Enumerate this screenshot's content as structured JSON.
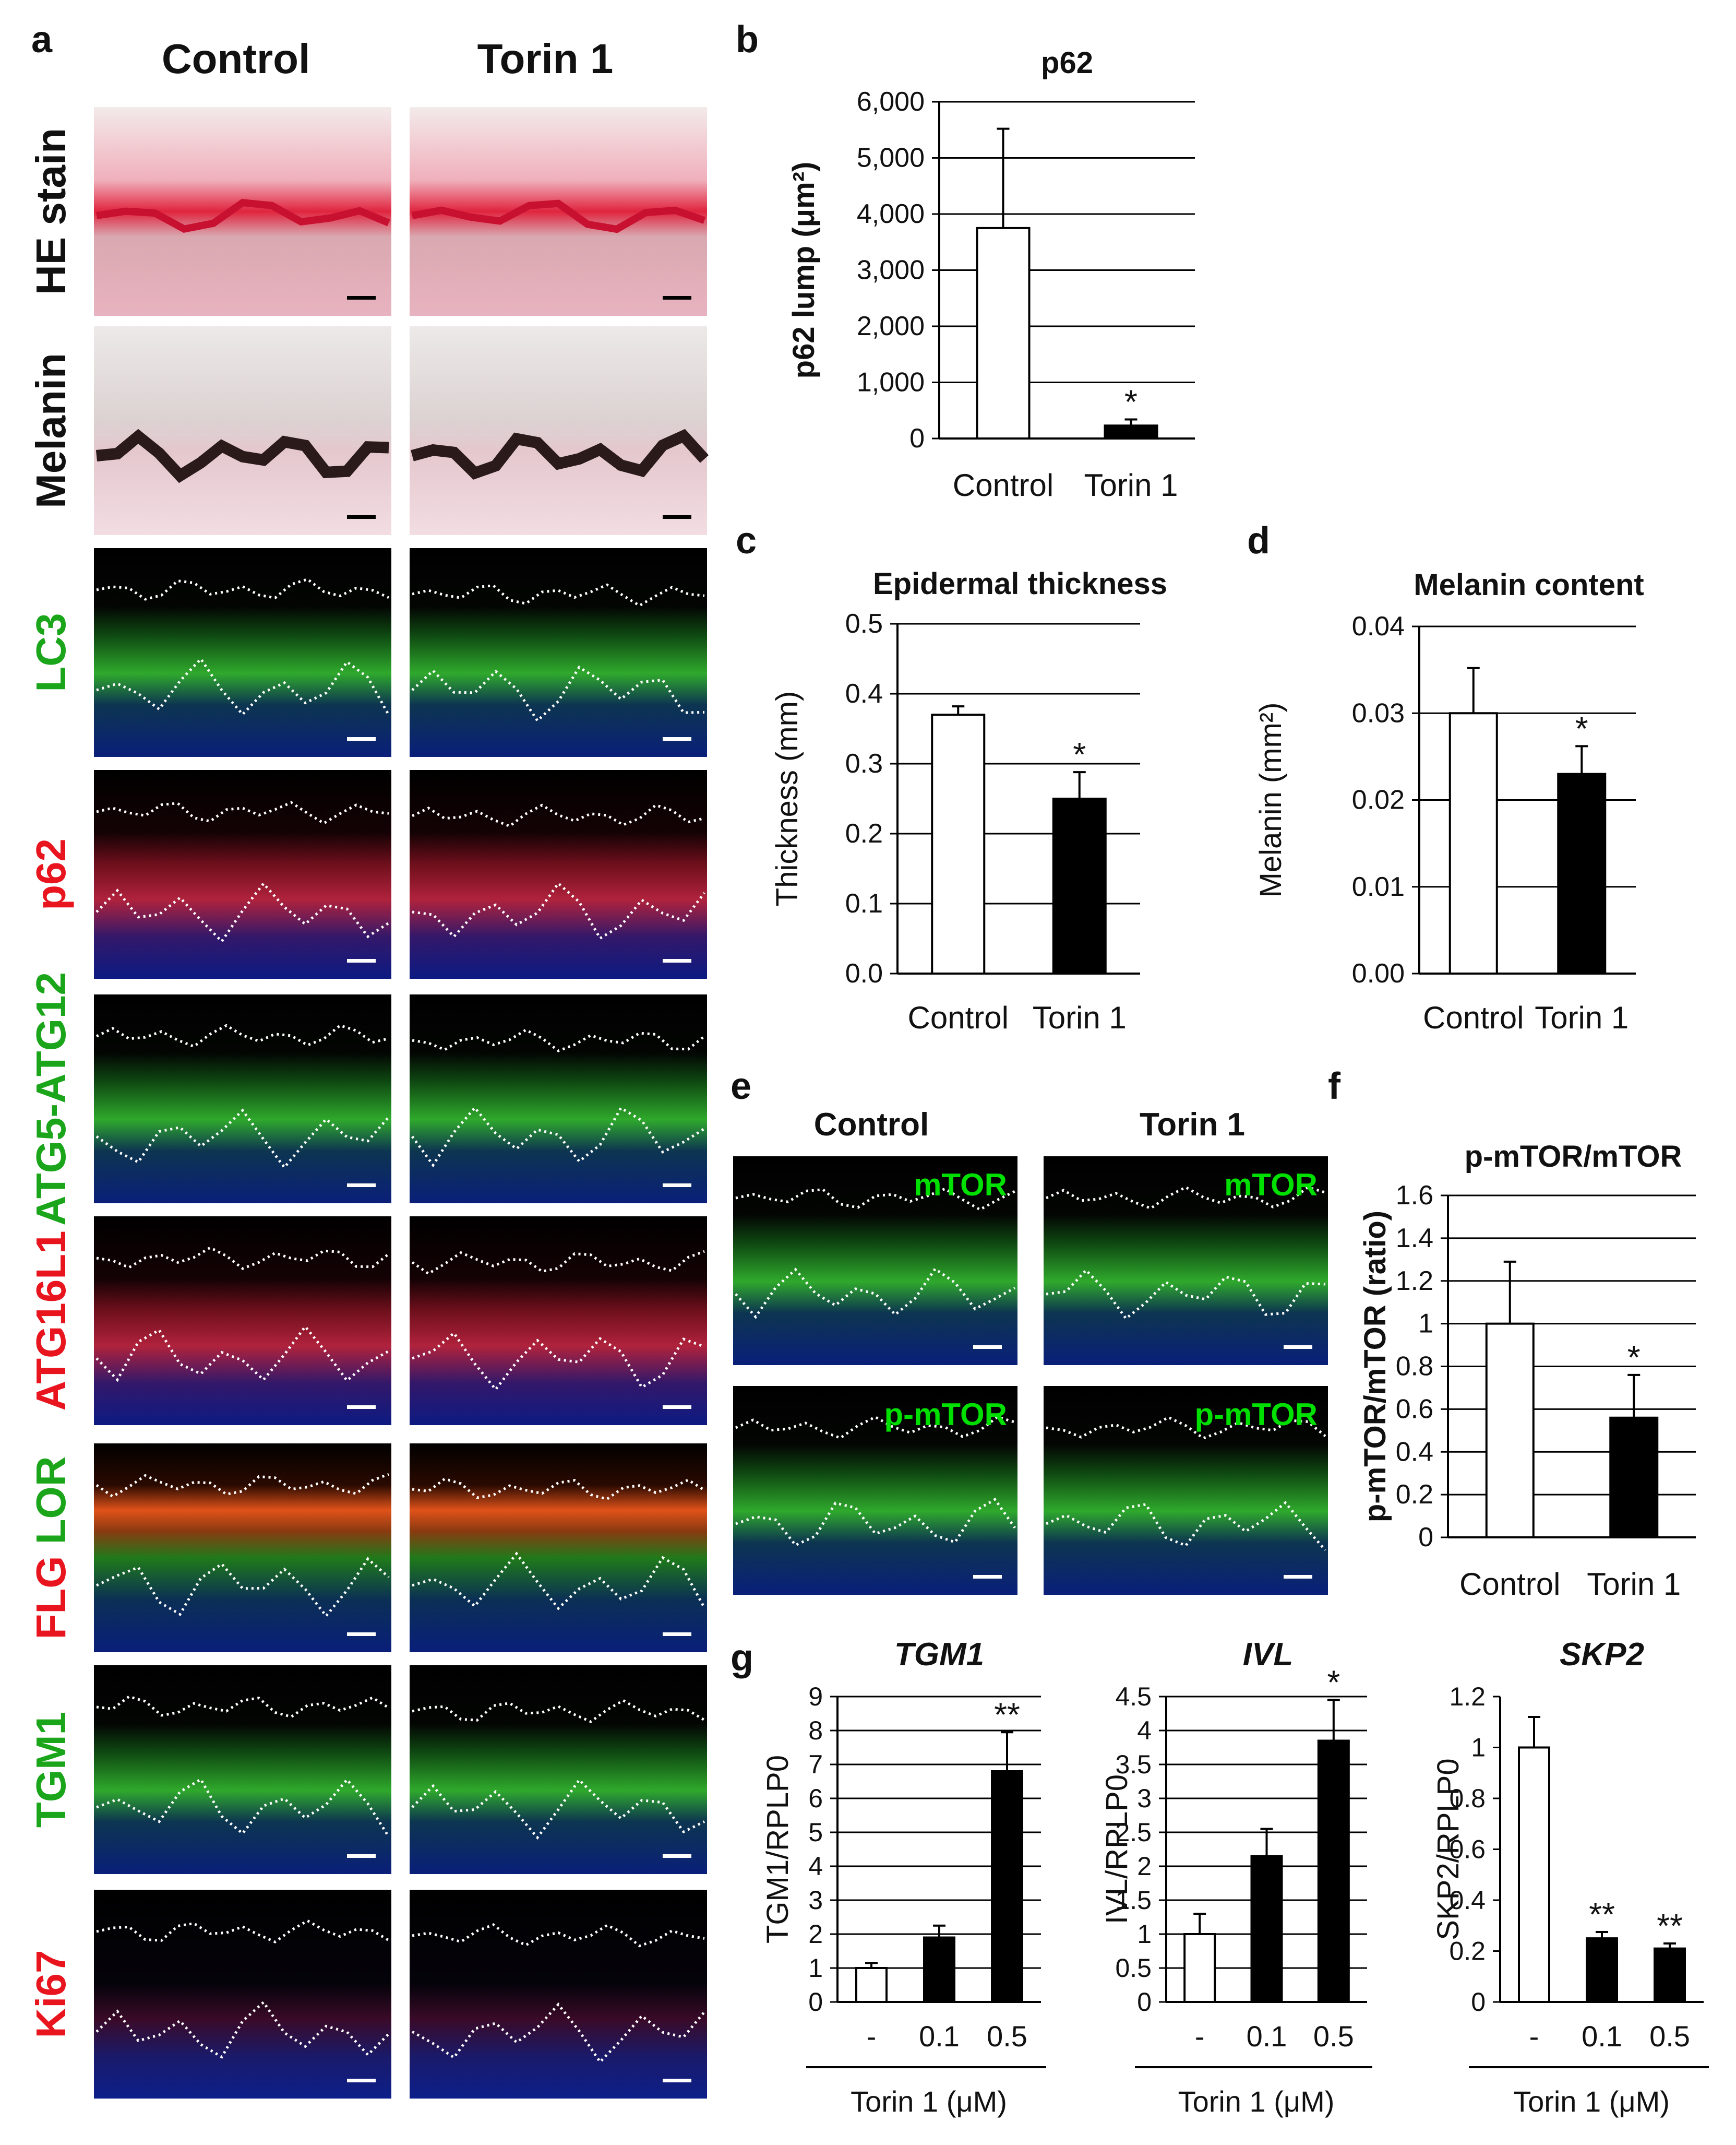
{
  "panel_a": {
    "label": "a",
    "col_headers": [
      "Control",
      "Torin 1"
    ],
    "rows": [
      {
        "label": "HE stain",
        "color": "#111111",
        "kind": "he"
      },
      {
        "label": "Melanin",
        "color": "#111111",
        "kind": "mel"
      },
      {
        "label": "LC3",
        "color": "#1aa51a",
        "kind": "green"
      },
      {
        "label": "p62",
        "color": "#e8141e",
        "kind": "red"
      },
      {
        "label": "ATG5-ATG12",
        "color": "#1aa51a",
        "kind": "green"
      },
      {
        "label": "ATG16L1",
        "color": "#e8141e",
        "kind": "red"
      },
      {
        "label_parts": [
          {
            "text": "FLG ",
            "color": "#e8141e"
          },
          {
            "text": "LOR",
            "color": "#1aa51a"
          }
        ],
        "kind": "flg"
      },
      {
        "label": "TGM1",
        "color": "#1aa51a",
        "kind": "green"
      },
      {
        "label": "Ki67",
        "color": "#e8141e",
        "kind": "ki"
      }
    ]
  },
  "panel_e": {
    "label": "e",
    "col_headers": [
      "Control",
      "Torin 1"
    ],
    "row_labels": [
      "mTOR",
      "p-mTOR"
    ]
  },
  "panel_f_label": "f",
  "panel_g_label": "g",
  "chart_data": [
    {
      "id": "b",
      "panel_label": "b",
      "type": "bar",
      "title": "p62",
      "ylabel": "p62 lump (μm²)",
      "xlabel": "",
      "categories": [
        "Control",
        "Torin 1"
      ],
      "values": [
        3750,
        230
      ],
      "errors": [
        1770,
        110
      ],
      "fills": [
        "#ffffff",
        "#000000"
      ],
      "significance": [
        "",
        "*"
      ],
      "ylim": [
        0,
        6000
      ],
      "yticks": [
        0,
        1000,
        2000,
        3000,
        4000,
        5000,
        6000
      ],
      "ytick_labels": [
        "0",
        "1,000",
        "2,000",
        "3,000",
        "4,000",
        "5,000",
        "6,000"
      ],
      "grid": true
    },
    {
      "id": "c",
      "panel_label": "c",
      "type": "bar",
      "title": "Epidermal thickness",
      "ylabel": "Thickness (mm)",
      "xlabel": "",
      "categories": [
        "Control",
        "Torin 1"
      ],
      "values": [
        0.37,
        0.25
      ],
      "errors": [
        0.012,
        0.038
      ],
      "fills": [
        "#ffffff",
        "#000000"
      ],
      "significance": [
        "",
        "*"
      ],
      "ylim": [
        0,
        0.5
      ],
      "yticks": [
        0,
        0.1,
        0.2,
        0.3,
        0.4,
        0.5
      ],
      "ytick_labels": [
        "0.0",
        "0.1",
        "0.2",
        "0.3",
        "0.4",
        "0.5"
      ],
      "grid": true
    },
    {
      "id": "d",
      "panel_label": "d",
      "type": "bar",
      "title": "Melanin content",
      "ylabel": "Melanin (mm²)",
      "xlabel": "",
      "categories": [
        "Control",
        "Torin 1"
      ],
      "values": [
        0.03,
        0.023
      ],
      "errors": [
        0.0052,
        0.0032
      ],
      "fills": [
        "#ffffff",
        "#000000"
      ],
      "significance": [
        "",
        "*"
      ],
      "ylim": [
        0,
        0.04
      ],
      "yticks": [
        0,
        0.01,
        0.02,
        0.03,
        0.04
      ],
      "ytick_labels": [
        "0.00",
        "0.01",
        "0.02",
        "0.03",
        "0.04"
      ],
      "grid": true
    },
    {
      "id": "f",
      "type": "bar",
      "title": "p-mTOR/mTOR",
      "ylabel": "p-mTOR/mTOR (ratio)",
      "xlabel": "",
      "categories": [
        "Control",
        "Torin 1"
      ],
      "values": [
        1.0,
        0.56
      ],
      "errors": [
        0.29,
        0.2
      ],
      "fills": [
        "#ffffff",
        "#000000"
      ],
      "significance": [
        "",
        "*"
      ],
      "ylim": [
        0,
        1.6
      ],
      "yticks": [
        0,
        0.2,
        0.4,
        0.6,
        0.8,
        1,
        1.2,
        1.4,
        1.6
      ],
      "ytick_labels": [
        "0",
        "0.2",
        "0.4",
        "0.6",
        "0.8",
        "1",
        "1.2",
        "1.4",
        "1.6"
      ],
      "grid": true
    },
    {
      "id": "g1",
      "type": "bar",
      "title": "TGM1",
      "ylabel": "TGM1/RPLP0",
      "xlabel": "Torin 1 (μM)",
      "categories": [
        "-",
        "0.1",
        "0.5"
      ],
      "values": [
        1.0,
        1.9,
        6.8
      ],
      "errors": [
        0.15,
        0.35,
        1.15
      ],
      "fills": [
        "#ffffff",
        "#000000",
        "#000000"
      ],
      "significance": [
        "",
        "",
        "**"
      ],
      "ylim": [
        0,
        9
      ],
      "yticks": [
        0,
        1,
        2,
        3,
        4,
        5,
        6,
        7,
        8,
        9
      ],
      "ytick_labels": [
        "0",
        "1",
        "2",
        "3",
        "4",
        "5",
        "6",
        "7",
        "8",
        "9"
      ],
      "grid": true
    },
    {
      "id": "g2",
      "type": "bar",
      "title": "IVL",
      "ylabel": "IVL/RPLP0",
      "xlabel": "Torin 1 (μM)",
      "categories": [
        "-",
        "0.1",
        "0.5"
      ],
      "values": [
        1.0,
        2.15,
        3.85
      ],
      "errors": [
        0.3,
        0.4,
        0.6
      ],
      "fills": [
        "#ffffff",
        "#000000",
        "#000000"
      ],
      "significance": [
        "",
        "",
        "*"
      ],
      "ylim": [
        0,
        4.5
      ],
      "yticks": [
        0,
        0.5,
        1,
        1.5,
        2,
        2.5,
        3,
        3.5,
        4,
        4.5
      ],
      "ytick_labels": [
        "0",
        "0.5",
        "1",
        "1.5",
        "2",
        "2.5",
        "3",
        "3.5",
        "4",
        "4.5"
      ],
      "grid": true
    },
    {
      "id": "g3",
      "type": "bar",
      "title": "SKP2",
      "ylabel": "SKP2/RPLP0",
      "xlabel": "Torin 1 (μM)",
      "categories": [
        "-",
        "0.1",
        "0.5"
      ],
      "values": [
        1.0,
        0.25,
        0.21
      ],
      "errors": [
        0.12,
        0.025,
        0.02
      ],
      "fills": [
        "#ffffff",
        "#000000",
        "#000000"
      ],
      "significance": [
        "",
        "**",
        "**"
      ],
      "ylim": [
        0,
        1.2
      ],
      "yticks": [
        0,
        0.2,
        0.4,
        0.6,
        0.8,
        1,
        1.2
      ],
      "ytick_labels": [
        "0",
        "0.2",
        "0.4",
        "0.6",
        "0.8",
        "1",
        "1.2"
      ],
      "grid": false
    }
  ]
}
